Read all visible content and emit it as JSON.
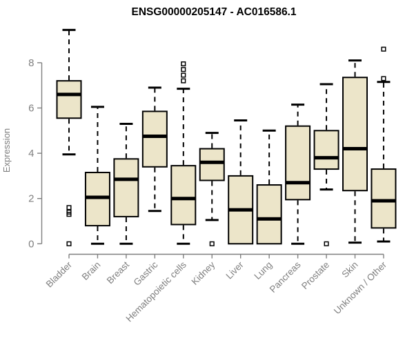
{
  "chart_data": {
    "type": "boxplot",
    "title": "ENSG00000205147 - AC016586.1",
    "ylabel": "Expression",
    "xlabel": "",
    "y_ticks": [
      0,
      2,
      4,
      6,
      8
    ],
    "ylim": [
      0,
      9.6
    ],
    "grid": false,
    "legend": "none",
    "categories": [
      "Bladder",
      "Brain",
      "Breast",
      "Gastric",
      "Hematopoietic cells",
      "Kidney",
      "Liver",
      "Lung",
      "Pancreas",
      "Prostate",
      "Skin",
      "Unknown / Other"
    ],
    "series": [
      {
        "category": "Bladder",
        "whisker_low": 3.95,
        "q1": 5.55,
        "median": 6.6,
        "q3": 7.2,
        "whisker_high": 9.45,
        "outliers": [
          1.6,
          1.4,
          1.3,
          0
        ]
      },
      {
        "category": "Brain",
        "whisker_low": 0,
        "q1": 0.8,
        "median": 2.05,
        "q3": 3.15,
        "whisker_high": 6.05,
        "outliers": []
      },
      {
        "category": "Breast",
        "whisker_low": 0,
        "q1": 1.2,
        "median": 2.85,
        "q3": 3.75,
        "whisker_high": 5.3,
        "outliers": []
      },
      {
        "category": "Gastric",
        "whisker_low": 1.45,
        "q1": 3.4,
        "median": 4.75,
        "q3": 5.85,
        "whisker_high": 6.9,
        "outliers": []
      },
      {
        "category": "Hematopoietic cells",
        "whisker_low": 0,
        "q1": 0.85,
        "median": 2.0,
        "q3": 3.45,
        "whisker_high": 6.85,
        "outliers": [
          7.95,
          7.7,
          7.45,
          7.2
        ]
      },
      {
        "category": "Kidney",
        "whisker_low": 1.05,
        "q1": 2.8,
        "median": 3.6,
        "q3": 4.2,
        "whisker_high": 4.9,
        "outliers": [
          0
        ]
      },
      {
        "category": "Liver",
        "whisker_low": 0,
        "q1": 0,
        "median": 1.5,
        "q3": 3.0,
        "whisker_high": 5.45,
        "outliers": []
      },
      {
        "category": "Lung",
        "whisker_low": 0,
        "q1": 0,
        "median": 1.1,
        "q3": 2.6,
        "whisker_high": 5.0,
        "outliers": []
      },
      {
        "category": "Pancreas",
        "whisker_low": 0,
        "q1": 1.95,
        "median": 2.7,
        "q3": 5.2,
        "whisker_high": 6.15,
        "outliers": []
      },
      {
        "category": "Prostate",
        "whisker_low": 2.4,
        "q1": 3.3,
        "median": 3.8,
        "q3": 5.0,
        "whisker_high": 7.05,
        "outliers": [
          0
        ]
      },
      {
        "category": "Skin",
        "whisker_low": 0.05,
        "q1": 2.35,
        "median": 4.2,
        "q3": 7.35,
        "whisker_high": 8.1,
        "outliers": []
      },
      {
        "category": "Unknown / Other",
        "whisker_low": 0.1,
        "q1": 0.7,
        "median": 1.9,
        "q3": 3.3,
        "whisker_high": 7.15,
        "outliers": [
          8.6,
          7.3
        ]
      }
    ],
    "colors": {
      "box_fill": "#ece5c9",
      "box_border": "#000000",
      "median": "#000000",
      "whisker": "#000000",
      "outlier": "#000000",
      "axis": "#7f7f7f",
      "tick_label": "#7f7f7f",
      "title": "#000000",
      "background": "#ffffff"
    }
  }
}
